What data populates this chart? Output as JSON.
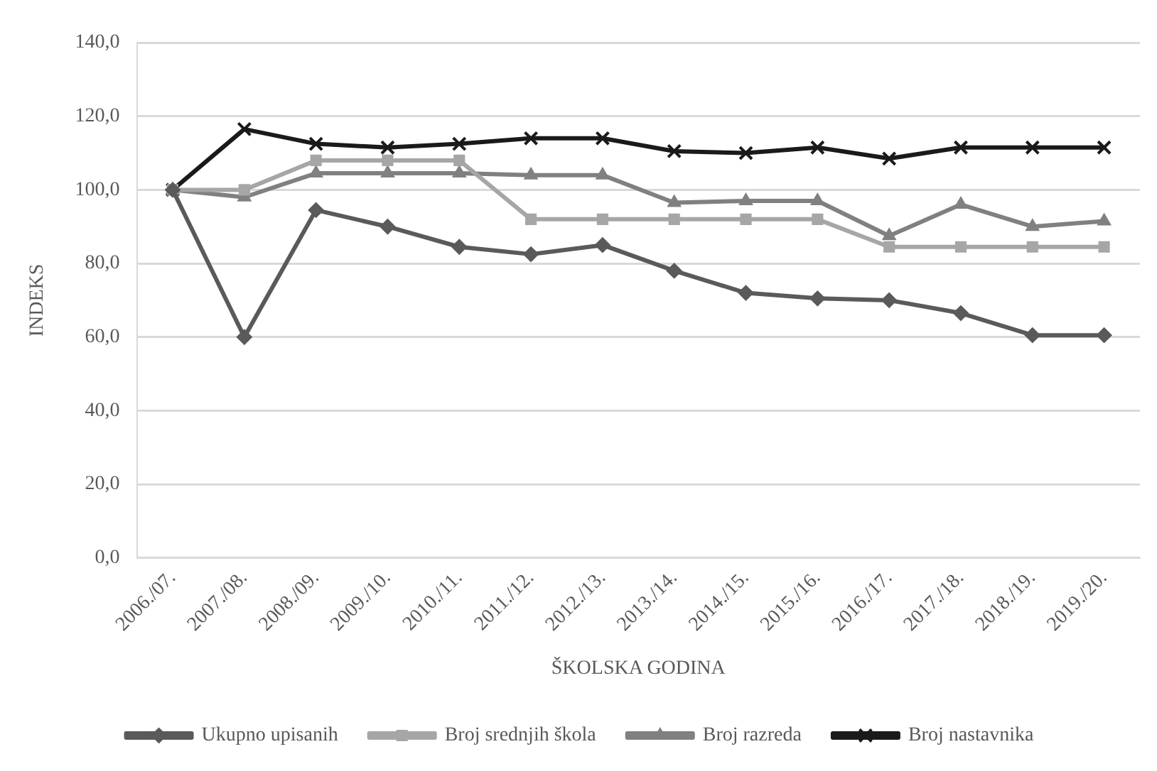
{
  "chart_data": {
    "type": "line",
    "xlabel": "ŠKOLSKA GODINA",
    "ylabel": "INDEKS",
    "categories": [
      "2006./07.",
      "2007./08.",
      "2008./09.",
      "2009./10.",
      "2010./11.",
      "2011./12.",
      "2012./13.",
      "2013./14.",
      "2014./15.",
      "2015./16.",
      "2016./17.",
      "2017./18.",
      "2018./19.",
      "2019./20."
    ],
    "series": [
      {
        "name": "Ukupno upisanih",
        "color": "#5a5a5a",
        "marker": "diamond",
        "values": [
          100,
          60,
          94.5,
          90,
          84.5,
          82.5,
          85,
          78,
          72,
          70.5,
          70,
          66.5,
          60.5,
          60.5
        ]
      },
      {
        "name": "Broj srednjih škola",
        "color": "#a6a6a6",
        "marker": "square",
        "values": [
          100,
          100,
          108,
          108,
          108,
          92,
          92,
          92,
          92,
          92,
          84.5,
          84.5,
          84.5,
          84.5
        ]
      },
      {
        "name": "Broj razreda",
        "color": "#808080",
        "marker": "triangle",
        "values": [
          100,
          98,
          104.5,
          104.5,
          104.5,
          104,
          104,
          96.5,
          97,
          97,
          87.5,
          96,
          90,
          91.5
        ]
      },
      {
        "name": "Broj nastavnika",
        "color": "#1a1a1a",
        "marker": "cross",
        "values": [
          100,
          116.5,
          112.5,
          111.5,
          112.5,
          114,
          114,
          110.5,
          110,
          111.5,
          108.5,
          111.5,
          111.5,
          111.5
        ]
      }
    ],
    "ylim": [
      0,
      140
    ],
    "yticks": [
      {
        "value": 0,
        "label": "0,0"
      },
      {
        "value": 20,
        "label": "20,0"
      },
      {
        "value": 40,
        "label": "40,0"
      },
      {
        "value": 60,
        "label": "60,0"
      },
      {
        "value": 80,
        "label": "80,0"
      },
      {
        "value": 100,
        "label": "100,0"
      },
      {
        "value": 120,
        "label": "120,0"
      },
      {
        "value": 140,
        "label": "140,0"
      }
    ],
    "grid": "y",
    "legend": "bottom"
  }
}
